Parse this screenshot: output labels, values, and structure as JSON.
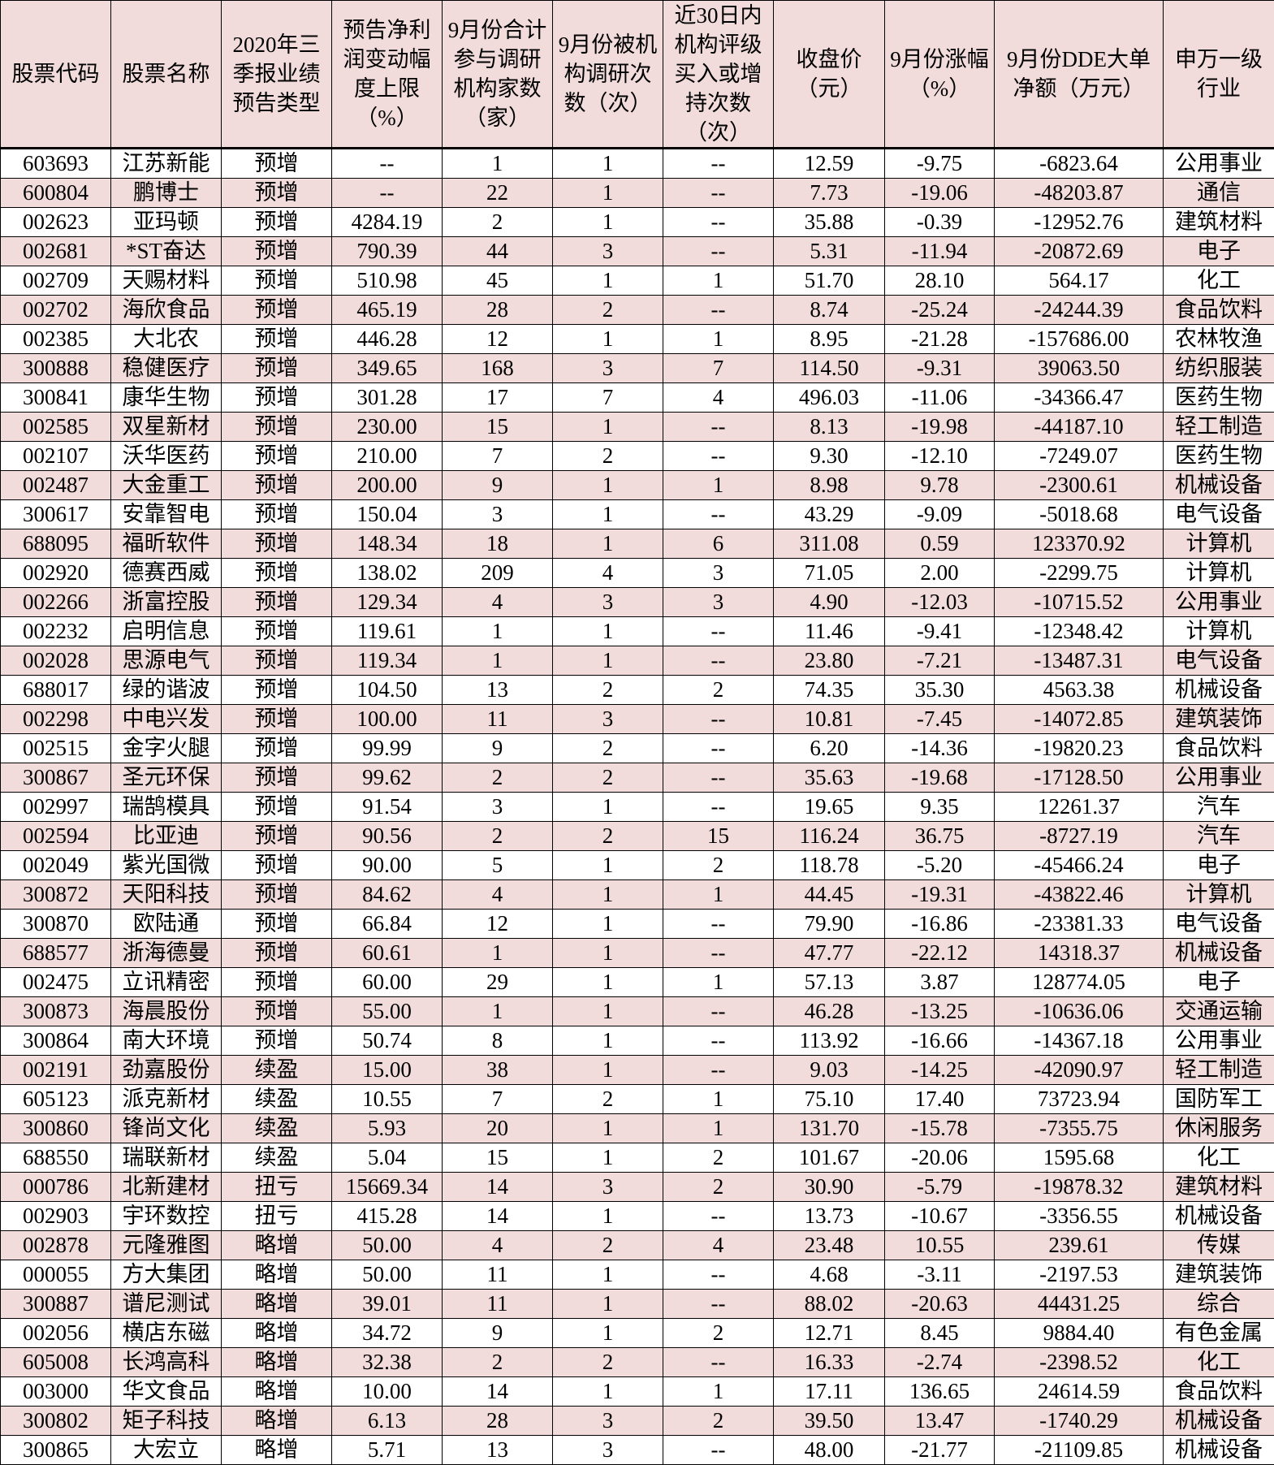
{
  "columns": [
    "股票代码",
    "股票名称",
    "2020年三季报业绩预告类型",
    "预告净利润变动幅度上限（%）",
    "9月份合计参与调研机构家数（家）",
    "9月份被机构调研次数（次）",
    "近30日内机构评级买入或增持次数（次）",
    "收盘价（元）",
    "9月份涨幅（%）",
    "9月份DDE大单净额（万元）",
    "申万一级行业"
  ],
  "colors": {
    "header_bg": "#f2dcdb",
    "alt_row_bg": "#f2dcdb",
    "row_bg": "#ffffff",
    "border": "#000000"
  },
  "rows": [
    [
      "603693",
      "江苏新能",
      "预增",
      "--",
      "1",
      "1",
      "--",
      "12.59",
      "-9.75",
      "-6823.64",
      "公用事业"
    ],
    [
      "600804",
      "鹏博士",
      "预增",
      "--",
      "22",
      "1",
      "--",
      "7.73",
      "-19.06",
      "-48203.87",
      "通信"
    ],
    [
      "002623",
      "亚玛顿",
      "预增",
      "4284.19",
      "2",
      "1",
      "--",
      "35.88",
      "-0.39",
      "-12952.76",
      "建筑材料"
    ],
    [
      "002681",
      "*ST奋达",
      "预增",
      "790.39",
      "44",
      "3",
      "--",
      "5.31",
      "-11.94",
      "-20872.69",
      "电子"
    ],
    [
      "002709",
      "天赐材料",
      "预增",
      "510.98",
      "45",
      "1",
      "1",
      "51.70",
      "28.10",
      "564.17",
      "化工"
    ],
    [
      "002702",
      "海欣食品",
      "预增",
      "465.19",
      "28",
      "2",
      "--",
      "8.74",
      "-25.24",
      "-24244.39",
      "食品饮料"
    ],
    [
      "002385",
      "大北农",
      "预增",
      "446.28",
      "12",
      "1",
      "1",
      "8.95",
      "-21.28",
      "-157686.00",
      "农林牧渔"
    ],
    [
      "300888",
      "稳健医疗",
      "预增",
      "349.65",
      "168",
      "3",
      "7",
      "114.50",
      "-9.31",
      "39063.50",
      "纺织服装"
    ],
    [
      "300841",
      "康华生物",
      "预增",
      "301.28",
      "17",
      "7",
      "4",
      "496.03",
      "-11.06",
      "-34366.47",
      "医药生物"
    ],
    [
      "002585",
      "双星新材",
      "预增",
      "230.00",
      "15",
      "1",
      "--",
      "8.13",
      "-19.98",
      "-44187.10",
      "轻工制造"
    ],
    [
      "002107",
      "沃华医药",
      "预增",
      "210.00",
      "7",
      "2",
      "--",
      "9.30",
      "-12.10",
      "-7249.07",
      "医药生物"
    ],
    [
      "002487",
      "大金重工",
      "预增",
      "200.00",
      "9",
      "1",
      "1",
      "8.98",
      "9.78",
      "-2300.61",
      "机械设备"
    ],
    [
      "300617",
      "安靠智电",
      "预增",
      "150.04",
      "3",
      "1",
      "--",
      "43.29",
      "-9.09",
      "-5018.68",
      "电气设备"
    ],
    [
      "688095",
      "福昕软件",
      "预增",
      "148.34",
      "18",
      "1",
      "6",
      "311.08",
      "0.59",
      "123370.92",
      "计算机"
    ],
    [
      "002920",
      "德赛西威",
      "预增",
      "138.02",
      "209",
      "4",
      "3",
      "71.05",
      "2.00",
      "-2299.75",
      "计算机"
    ],
    [
      "002266",
      "浙富控股",
      "预增",
      "129.34",
      "4",
      "3",
      "3",
      "4.90",
      "-12.03",
      "-10715.52",
      "公用事业"
    ],
    [
      "002232",
      "启明信息",
      "预增",
      "119.61",
      "1",
      "1",
      "--",
      "11.46",
      "-9.41",
      "-12348.42",
      "计算机"
    ],
    [
      "002028",
      "思源电气",
      "预增",
      "119.34",
      "1",
      "1",
      "--",
      "23.80",
      "-7.21",
      "-13487.31",
      "电气设备"
    ],
    [
      "688017",
      "绿的谐波",
      "预增",
      "104.50",
      "13",
      "2",
      "2",
      "74.35",
      "35.30",
      "4563.38",
      "机械设备"
    ],
    [
      "002298",
      "中电兴发",
      "预增",
      "100.00",
      "11",
      "3",
      "--",
      "10.81",
      "-7.45",
      "-14072.85",
      "建筑装饰"
    ],
    [
      "002515",
      "金字火腿",
      "预增",
      "99.99",
      "9",
      "2",
      "--",
      "6.20",
      "-14.36",
      "-19820.23",
      "食品饮料"
    ],
    [
      "300867",
      "圣元环保",
      "预增",
      "99.62",
      "2",
      "2",
      "--",
      "35.63",
      "-19.68",
      "-17128.50",
      "公用事业"
    ],
    [
      "002997",
      "瑞鹄模具",
      "预增",
      "91.54",
      "3",
      "1",
      "--",
      "19.65",
      "9.35",
      "12261.37",
      "汽车"
    ],
    [
      "002594",
      "比亚迪",
      "预增",
      "90.56",
      "2",
      "2",
      "15",
      "116.24",
      "36.75",
      "-8727.19",
      "汽车"
    ],
    [
      "002049",
      "紫光国微",
      "预增",
      "90.00",
      "5",
      "1",
      "2",
      "118.78",
      "-5.20",
      "-45466.24",
      "电子"
    ],
    [
      "300872",
      "天阳科技",
      "预增",
      "84.62",
      "4",
      "1",
      "1",
      "44.45",
      "-19.31",
      "-43822.46",
      "计算机"
    ],
    [
      "300870",
      "欧陆通",
      "预增",
      "66.84",
      "12",
      "1",
      "--",
      "79.90",
      "-16.86",
      "-23381.33",
      "电气设备"
    ],
    [
      "688577",
      "浙海德曼",
      "预增",
      "60.61",
      "1",
      "1",
      "--",
      "47.77",
      "-22.12",
      "14318.37",
      "机械设备"
    ],
    [
      "002475",
      "立讯精密",
      "预增",
      "60.00",
      "29",
      "1",
      "1",
      "57.13",
      "3.87",
      "128774.05",
      "电子"
    ],
    [
      "300873",
      "海晨股份",
      "预增",
      "55.00",
      "1",
      "1",
      "--",
      "46.28",
      "-13.25",
      "-10636.06",
      "交通运输"
    ],
    [
      "300864",
      "南大环境",
      "预增",
      "50.74",
      "8",
      "1",
      "--",
      "113.92",
      "-16.66",
      "-14367.18",
      "公用事业"
    ],
    [
      "002191",
      "劲嘉股份",
      "续盈",
      "15.00",
      "38",
      "1",
      "--",
      "9.03",
      "-14.25",
      "-42090.97",
      "轻工制造"
    ],
    [
      "605123",
      "派克新材",
      "续盈",
      "10.55",
      "7",
      "2",
      "1",
      "75.10",
      "17.40",
      "73723.94",
      "国防军工"
    ],
    [
      "300860",
      "锋尚文化",
      "续盈",
      "5.93",
      "20",
      "1",
      "1",
      "131.70",
      "-15.78",
      "-7355.75",
      "休闲服务"
    ],
    [
      "688550",
      "瑞联新材",
      "续盈",
      "5.04",
      "15",
      "1",
      "2",
      "101.67",
      "-20.06",
      "1595.68",
      "化工"
    ],
    [
      "000786",
      "北新建材",
      "扭亏",
      "15669.34",
      "14",
      "3",
      "2",
      "30.90",
      "-5.79",
      "-19878.32",
      "建筑材料"
    ],
    [
      "002903",
      "宇环数控",
      "扭亏",
      "415.28",
      "14",
      "1",
      "--",
      "13.73",
      "-10.67",
      "-3356.55",
      "机械设备"
    ],
    [
      "002878",
      "元隆雅图",
      "略增",
      "50.00",
      "4",
      "2",
      "4",
      "23.48",
      "10.55",
      "239.61",
      "传媒"
    ],
    [
      "000055",
      "方大集团",
      "略增",
      "50.00",
      "11",
      "1",
      "--",
      "4.68",
      "-3.11",
      "-2197.53",
      "建筑装饰"
    ],
    [
      "300887",
      "谱尼测试",
      "略增",
      "39.01",
      "11",
      "1",
      "--",
      "88.02",
      "-20.63",
      "44431.25",
      "综合"
    ],
    [
      "002056",
      "横店东磁",
      "略增",
      "34.72",
      "9",
      "1",
      "2",
      "12.71",
      "8.45",
      "9884.40",
      "有色金属"
    ],
    [
      "605008",
      "长鸿高科",
      "略增",
      "32.38",
      "2",
      "2",
      "--",
      "16.33",
      "-2.74",
      "-2398.52",
      "化工"
    ],
    [
      "003000",
      "华文食品",
      "略增",
      "10.00",
      "14",
      "1",
      "1",
      "17.11",
      "136.65",
      "24614.59",
      "食品饮料"
    ],
    [
      "300802",
      "矩子科技",
      "略增",
      "6.13",
      "28",
      "3",
      "2",
      "39.50",
      "13.47",
      "-1740.29",
      "机械设备"
    ],
    [
      "300865",
      "大宏立",
      "略增",
      "5.71",
      "13",
      "3",
      "--",
      "48.00",
      "-21.77",
      "-21109.85",
      "机械设备"
    ]
  ]
}
